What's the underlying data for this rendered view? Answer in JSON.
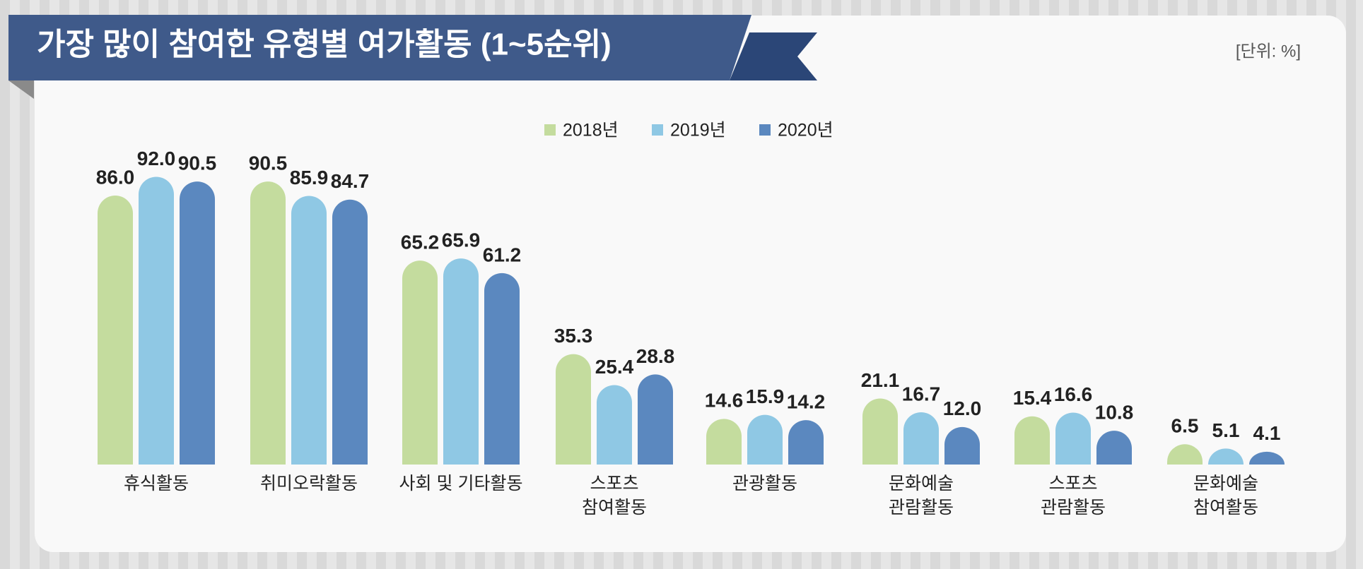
{
  "chart_data": {
    "type": "bar",
    "title": "가장 많이 참여한 유형별 여가활동 (1~5순위)",
    "unit": "[단위: %]",
    "categories": [
      "휴식활동",
      "취미오락활동",
      "사회 및 기타활동",
      "스포츠\n참여활동",
      "관광활동",
      "문화예술\n관람활동",
      "스포츠\n관람활동",
      "문화예술\n참여활동"
    ],
    "series": [
      {
        "name": "2018년",
        "color": "#c4dc9e",
        "values": [
          86.0,
          90.5,
          65.2,
          35.3,
          14.6,
          21.1,
          15.4,
          6.5
        ],
        "value_labels": [
          "86.0",
          "90.5",
          "65.2",
          "35.3",
          "14.6",
          "21.1",
          "15.4",
          "6.5"
        ]
      },
      {
        "name": "2019년",
        "color": "#8fc8e4",
        "values": [
          92.0,
          85.9,
          65.9,
          25.4,
          15.9,
          16.7,
          16.6,
          5.1
        ],
        "value_labels": [
          "92.0",
          "85.9",
          "65.9",
          "25.4",
          "15.9",
          "16.7",
          "16.6",
          "5.1"
        ]
      },
      {
        "name": "2020년",
        "color": "#5b88bf",
        "values": [
          90.5,
          84.7,
          61.2,
          28.8,
          14.2,
          12.0,
          10.8,
          4.1
        ],
        "value_labels": [
          "90.5",
          "84.7",
          "61.2",
          "28.8",
          "14.2",
          "12.0",
          "10.8",
          "4.1"
        ]
      }
    ]
  }
}
